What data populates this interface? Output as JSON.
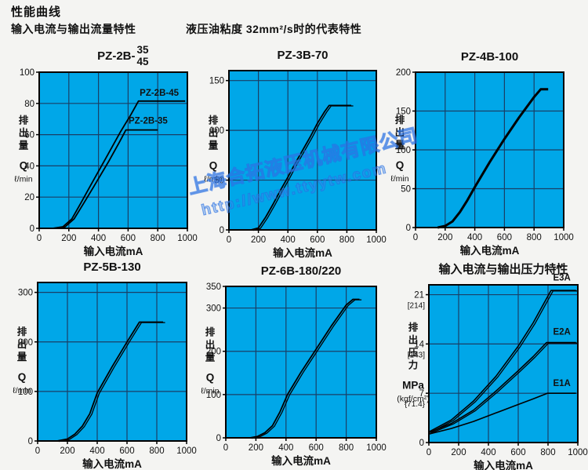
{
  "page": {
    "title": "性能曲线",
    "subtitle_left": "输入电流与输出流量特性",
    "subtitle_center": "液压油粘度 32mm²/s时的代表特性",
    "watermark_line1": "上海合拓液压机械有限公司",
    "watermark_line2": "http://www.ttyytw.com"
  },
  "colors": {
    "page_bg": "#f4f4f2",
    "plot_bg": "#00a7e8",
    "grid": "#1a3f66",
    "frame": "#000000",
    "curve": "#000000",
    "text": "#111111",
    "watermark": "#3c8ce8"
  },
  "chart_data": [
    {
      "type": "line",
      "title": "PZ-2B-35/45",
      "title_main": "PZ-2B-",
      "title_stack": [
        "35",
        "45"
      ],
      "xlabel": "输入电流mA",
      "ylabel_chars": "排出量",
      "ylabel_sym": "Q",
      "ylabel_unit": "ℓ/min",
      "xlim": [
        0,
        1000
      ],
      "ylim": [
        0,
        100
      ],
      "xticks": [
        0,
        200,
        400,
        600,
        800,
        1000
      ],
      "yticks": [
        {
          "v": 100,
          "t": "100"
        },
        {
          "v": 80,
          "t": "80"
        },
        {
          "v": 60,
          "t": "60"
        },
        {
          "v": 40,
          "t": "40"
        },
        {
          "v": 20,
          "t": "20"
        },
        {
          "v": 0,
          "t": "0"
        }
      ],
      "xgrid": [
        200,
        400,
        600,
        800
      ],
      "ygrid": [
        20,
        40,
        60,
        80
      ],
      "series": [
        {
          "name": "PZ-2B-45",
          "width": 1.8,
          "double": false,
          "points": [
            [
              90,
              0
            ],
            [
              160,
              1
            ],
            [
              220,
              6
            ],
            [
              280,
              16
            ],
            [
              350,
              28
            ],
            [
              450,
              45
            ],
            [
              550,
              62
            ],
            [
              620,
              73
            ],
            [
              670,
              81.5
            ],
            [
              985,
              81.5
            ]
          ]
        },
        {
          "name": "PZ-2B-35",
          "width": 1.8,
          "double": false,
          "points": [
            [
              105,
              0
            ],
            [
              175,
              1
            ],
            [
              235,
              6
            ],
            [
              300,
              16
            ],
            [
              370,
              27
            ],
            [
              470,
              43
            ],
            [
              540,
              55
            ],
            [
              585,
              63
            ],
            [
              800,
              63
            ]
          ]
        }
      ],
      "annotations": [
        {
          "text": "PZ-2B-45",
          "x": 810,
          "y": 85
        },
        {
          "text": "PZ-2B-35",
          "x": 735,
          "y": 67
        }
      ]
    },
    {
      "type": "line",
      "title": "PZ-3B-70",
      "title_main": "PZ-3B-70",
      "xlabel": "输入电流mA",
      "ylabel_chars": "排出量",
      "ylabel_sym": "Q",
      "ylabel_unit": "ℓ/min",
      "xlim": [
        0,
        1000
      ],
      "ylim": [
        0,
        160
      ],
      "xticks": [
        0,
        200,
        400,
        600,
        800,
        1000
      ],
      "yticks": [
        {
          "v": 150,
          "t": "150"
        },
        {
          "v": 100,
          "t": "100"
        },
        {
          "v": 50,
          "t": "50"
        },
        {
          "v": 0,
          "t": "0"
        }
      ],
      "xgrid": [
        200,
        400,
        600,
        800
      ],
      "ygrid": [
        50,
        100,
        150
      ],
      "series": [
        {
          "name": "PZ-3B-70",
          "width": 1.8,
          "double": true,
          "points": [
            [
              150,
              0
            ],
            [
              200,
              2
            ],
            [
              250,
              13
            ],
            [
              300,
              26
            ],
            [
              350,
              40
            ],
            [
              400,
              53
            ],
            [
              450,
              67
            ],
            [
              500,
              80
            ],
            [
              550,
              93
            ],
            [
              600,
              107
            ],
            [
              650,
              119
            ],
            [
              680,
              125
            ],
            [
              830,
              125
            ]
          ]
        }
      ],
      "annotations": []
    },
    {
      "type": "line",
      "title": "PZ-4B-100",
      "title_main": "PZ-4B-100",
      "xlabel": "输入电流mA",
      "ylabel_chars": "排出量",
      "ylabel_sym": "Q",
      "ylabel_unit": "ℓ/min",
      "xlim": [
        0,
        1000
      ],
      "ylim": [
        0,
        200
      ],
      "xticks": [
        0,
        200,
        400,
        600,
        800,
        1000
      ],
      "yticks": [
        {
          "v": 200,
          "t": "200"
        },
        {
          "v": 150,
          "t": "150"
        },
        {
          "v": 100,
          "t": "100"
        },
        {
          "v": 50,
          "t": "50"
        },
        {
          "v": 0,
          "t": "0"
        }
      ],
      "xgrid": [
        200,
        400,
        600,
        800
      ],
      "ygrid": [
        50,
        100,
        150
      ],
      "series": [
        {
          "name": "PZ-4B-100",
          "width": 3,
          "double": false,
          "points": [
            [
              150,
              0
            ],
            [
              200,
              2
            ],
            [
              250,
              8
            ],
            [
              300,
              20
            ],
            [
              350,
              35
            ],
            [
              400,
              52
            ],
            [
              500,
              84
            ],
            [
              600,
              114
            ],
            [
              700,
              142
            ],
            [
              800,
              168
            ],
            [
              845,
              178
            ],
            [
              895,
              178
            ]
          ]
        }
      ],
      "annotations": []
    },
    {
      "type": "line",
      "title": "PZ-5B-130",
      "title_main": "PZ-5B-130",
      "xlabel": "输入电流mA",
      "ylabel_chars": "排出量",
      "ylabel_sym": "Q",
      "ylabel_unit": "ℓ/min",
      "xlim": [
        0,
        1000
      ],
      "ylim": [
        0,
        320
      ],
      "xticks": [
        0,
        200,
        400,
        600,
        800,
        1000
      ],
      "yticks": [
        {
          "v": 300,
          "t": "300"
        },
        {
          "v": 200,
          "t": "200"
        },
        {
          "v": 100,
          "t": "100"
        },
        {
          "v": 0,
          "t": "0"
        }
      ],
      "xgrid": [
        200,
        400,
        600,
        800
      ],
      "ygrid": [
        100,
        200,
        300
      ],
      "series": [
        {
          "name": "PZ-5B-130",
          "width": 1.8,
          "double": true,
          "points": [
            [
              130,
              0
            ],
            [
              200,
              4
            ],
            [
              250,
              14
            ],
            [
              300,
              30
            ],
            [
              350,
              55
            ],
            [
              400,
              97
            ],
            [
              500,
              150
            ],
            [
              600,
              200
            ],
            [
              650,
              224
            ],
            [
              683,
              240
            ],
            [
              842,
              240
            ]
          ]
        }
      ],
      "annotations": []
    },
    {
      "type": "line",
      "title": "PZ-6B-180/220",
      "title_main": "PZ-6B-180/220",
      "xlabel": "输入电流mA",
      "ylabel_chars": "排出量",
      "ylabel_sym": "Q",
      "ylabel_unit": "ℓ/min",
      "xlim": [
        0,
        1000
      ],
      "ylim": [
        0,
        350
      ],
      "xticks": [
        0,
        200,
        400,
        600,
        800,
        1000
      ],
      "yticks": [
        {
          "v": 350,
          "t": "350"
        },
        {
          "v": 300,
          "t": "300"
        },
        {
          "v": 200,
          "t": "200"
        },
        {
          "v": 100,
          "t": "100"
        },
        {
          "v": 0,
          "t": "0"
        }
      ],
      "xgrid": [
        200,
        400,
        600,
        800
      ],
      "ygrid": [
        100,
        200,
        300
      ],
      "series": [
        {
          "name": "PZ-6B-180/220",
          "width": 1.8,
          "double": true,
          "points": [
            [
              160,
              0
            ],
            [
              210,
              3
            ],
            [
              260,
              12
            ],
            [
              310,
              28
            ],
            [
              360,
              60
            ],
            [
              410,
              100
            ],
            [
              500,
              152
            ],
            [
              600,
              205
            ],
            [
              700,
              258
            ],
            [
              800,
              307
            ],
            [
              845,
              320
            ],
            [
              888,
              320
            ]
          ]
        }
      ],
      "annotations": []
    },
    {
      "type": "line",
      "title": "输入电流与输出压力特性",
      "title_main": "输入电流与输出压力特性",
      "title_bold": true,
      "xlabel": "输入电流mA",
      "ylabel_chars": "排出压力",
      "ylabel_sym": "MPa",
      "ylabel_unit": "(kgf/cm²)",
      "xlim": [
        0,
        1000
      ],
      "ylim": [
        0,
        22.4
      ],
      "xticks": [
        0,
        200,
        400,
        600,
        800,
        1000
      ],
      "yticks": [
        {
          "v": 21,
          "t": "21",
          "sub": "[214]"
        },
        {
          "v": 14,
          "t": "14",
          "sub": "[143]"
        },
        {
          "v": 7,
          "t": "7",
          "sub": "{71.4}"
        },
        {
          "v": 0,
          "t": "0"
        }
      ],
      "xgrid": [
        200,
        400,
        600,
        800
      ],
      "ygrid": [
        7,
        14,
        21
      ],
      "series": [
        {
          "name": "E3A",
          "width": 1.6,
          "double": true,
          "points": [
            [
              0,
              1.5
            ],
            [
              150,
              3.2
            ],
            [
              300,
              5.9
            ],
            [
              450,
              9.4
            ],
            [
              600,
              13.7
            ],
            [
              700,
              17.0
            ],
            [
              820,
              21.6
            ],
            [
              988,
              21.6
            ]
          ]
        },
        {
          "name": "E2A",
          "width": 1.6,
          "double": true,
          "points": [
            [
              0,
              1.4
            ],
            [
              150,
              2.7
            ],
            [
              300,
              4.6
            ],
            [
              450,
              7.3
            ],
            [
              600,
              10.2
            ],
            [
              700,
              12.2
            ],
            [
              790,
              14.2
            ],
            [
              988,
              14.2
            ]
          ]
        },
        {
          "name": "E1A",
          "width": 1.6,
          "double": false,
          "points": [
            [
              0,
              1.2
            ],
            [
              150,
              2.0
            ],
            [
              300,
              3.0
            ],
            [
              450,
              4.2
            ],
            [
              600,
              5.4
            ],
            [
              700,
              6.2
            ],
            [
              795,
              7.0
            ],
            [
              988,
              7.0
            ]
          ]
        }
      ],
      "annotations": [
        {
          "text": "E3A",
          "x": 893,
          "y": 23.0
        },
        {
          "text": "E2A",
          "x": 893,
          "y": 15.3
        },
        {
          "text": "E1A",
          "x": 893,
          "y": 8.0
        }
      ]
    }
  ]
}
